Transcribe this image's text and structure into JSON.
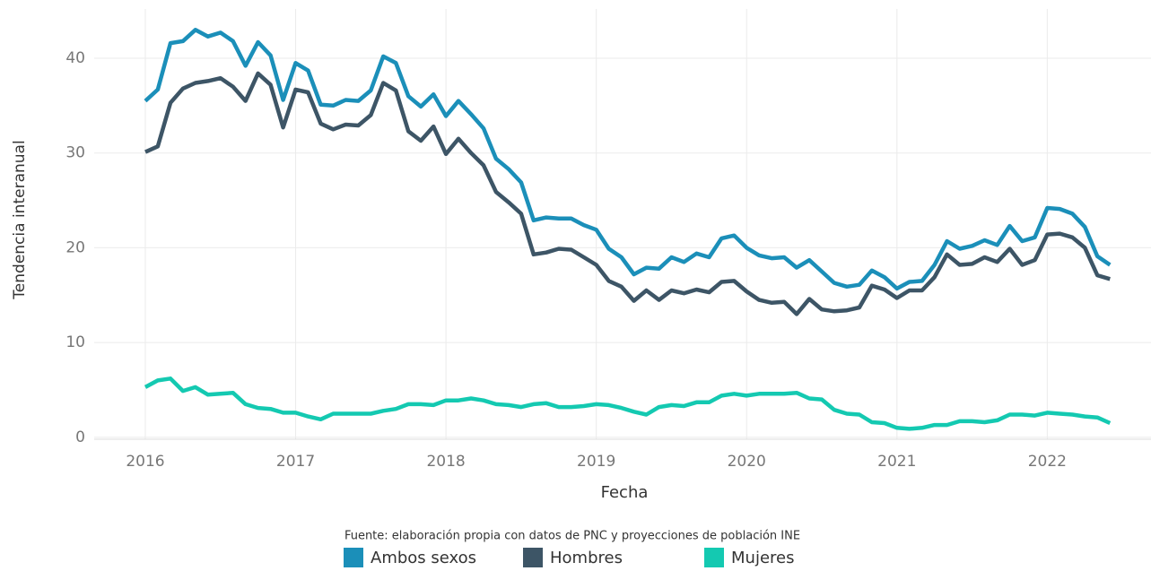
{
  "chart_data": {
    "type": "line",
    "y_label": "Tendencia interanual",
    "x_label": "Fecha",
    "caption": "Fuente: elaboración propia con datos de PNC y proyecciones de población INE",
    "legend": "bottom",
    "grid": true,
    "xlim": [
      2015.66,
      2022.69
    ],
    "xticks": [
      2016,
      2017,
      2018,
      2019,
      2020,
      2021,
      2022
    ],
    "ylim": [
      -0.2,
      45.2
    ],
    "yticks": [
      0,
      10,
      20,
      30,
      40
    ],
    "x": [
      2016,
      2016.083,
      2016.167,
      2016.25,
      2016.333,
      2016.417,
      2016.5,
      2016.583,
      2016.667,
      2016.75,
      2016.833,
      2016.917,
      2017,
      2017.083,
      2017.167,
      2017.25,
      2017.333,
      2017.417,
      2017.5,
      2017.583,
      2017.667,
      2017.75,
      2017.833,
      2017.917,
      2018,
      2018.083,
      2018.167,
      2018.25,
      2018.333,
      2018.417,
      2018.5,
      2018.583,
      2018.667,
      2018.75,
      2018.833,
      2018.917,
      2019,
      2019.083,
      2019.167,
      2019.25,
      2019.333,
      2019.417,
      2019.5,
      2019.583,
      2019.667,
      2019.75,
      2019.833,
      2019.917,
      2020,
      2020.083,
      2020.167,
      2020.25,
      2020.333,
      2020.417,
      2020.5,
      2020.583,
      2020.667,
      2020.75,
      2020.833,
      2020.917,
      2021,
      2021.083,
      2021.167,
      2021.25,
      2021.333,
      2021.417,
      2021.5,
      2021.583,
      2021.667,
      2021.75,
      2021.833,
      2021.917,
      2022,
      2022.083,
      2022.167,
      2022.25,
      2022.333,
      2022.417
    ],
    "series": [
      {
        "name": "Ambos sexos",
        "color": "#1b8fb9",
        "values": [
          35.5,
          36.7,
          41.6,
          41.8,
          43,
          42.3,
          42.7,
          41.8,
          39.2,
          41.7,
          40.3,
          35.6,
          39.5,
          38.7,
          35.1,
          35,
          35.6,
          35.5,
          36.6,
          40.2,
          39.5,
          36,
          34.9,
          36.2,
          33.9,
          35.5,
          34.1,
          32.6,
          29.4,
          28.3,
          26.9,
          22.9,
          23.2,
          23.1,
          23.1,
          22.4,
          21.9,
          19.9,
          19,
          17.2,
          17.9,
          17.8,
          19,
          18.5,
          19.4,
          19,
          21,
          21.3,
          20,
          19.2,
          18.9,
          19,
          17.9,
          18.7,
          17.5,
          16.3,
          15.9,
          16.1,
          17.6,
          16.9,
          15.7,
          16.4,
          16.5,
          18.2,
          20.7,
          19.9,
          20.2,
          20.8,
          20.3,
          22.3,
          20.7,
          21.1,
          24.2,
          24.1,
          23.6,
          22.2,
          19.1,
          18.2
        ]
      },
      {
        "name": "Hombres",
        "color": "#3d5566",
        "values": [
          30.1,
          30.7,
          35.3,
          36.8,
          37.4,
          37.6,
          37.9,
          37,
          35.5,
          38.4,
          37.2,
          32.7,
          36.7,
          36.4,
          33.1,
          32.5,
          33,
          32.9,
          34,
          37.4,
          36.6,
          32.3,
          31.3,
          32.8,
          29.9,
          31.5,
          30,
          28.7,
          25.9,
          24.8,
          23.6,
          19.3,
          19.5,
          19.9,
          19.8,
          19,
          18.2,
          16.5,
          15.9,
          14.4,
          15.5,
          14.5,
          15.5,
          15.2,
          15.6,
          15.3,
          16.4,
          16.5,
          15.4,
          14.5,
          14.2,
          14.3,
          13,
          14.6,
          13.5,
          13.3,
          13.4,
          13.7,
          16,
          15.6,
          14.7,
          15.5,
          15.5,
          16.9,
          19.3,
          18.2,
          18.3,
          19,
          18.5,
          19.9,
          18.2,
          18.7,
          21.4,
          21.5,
          21.1,
          20,
          17.1,
          16.7
        ]
      },
      {
        "name": "Mujeres",
        "color": "#14c9b1",
        "values": [
          5.3,
          6,
          6.2,
          4.9,
          5.3,
          4.5,
          4.6,
          4.7,
          3.5,
          3.1,
          3,
          2.6,
          2.6,
          2.2,
          1.9,
          2.5,
          2.5,
          2.5,
          2.5,
          2.8,
          3,
          3.5,
          3.5,
          3.4,
          3.9,
          3.9,
          4.1,
          3.9,
          3.5,
          3.4,
          3.2,
          3.5,
          3.6,
          3.2,
          3.2,
          3.3,
          3.5,
          3.4,
          3.1,
          2.7,
          2.4,
          3.2,
          3.4,
          3.3,
          3.7,
          3.7,
          4.4,
          4.6,
          4.4,
          4.6,
          4.6,
          4.6,
          4.7,
          4.1,
          4,
          2.9,
          2.5,
          2.4,
          1.6,
          1.5,
          1,
          0.9,
          1,
          1.3,
          1.3,
          1.7,
          1.7,
          1.6,
          1.8,
          2.4,
          2.4,
          2.3,
          2.6,
          2.5,
          2.4,
          2.2,
          2.1,
          1.5
        ]
      }
    ]
  }
}
